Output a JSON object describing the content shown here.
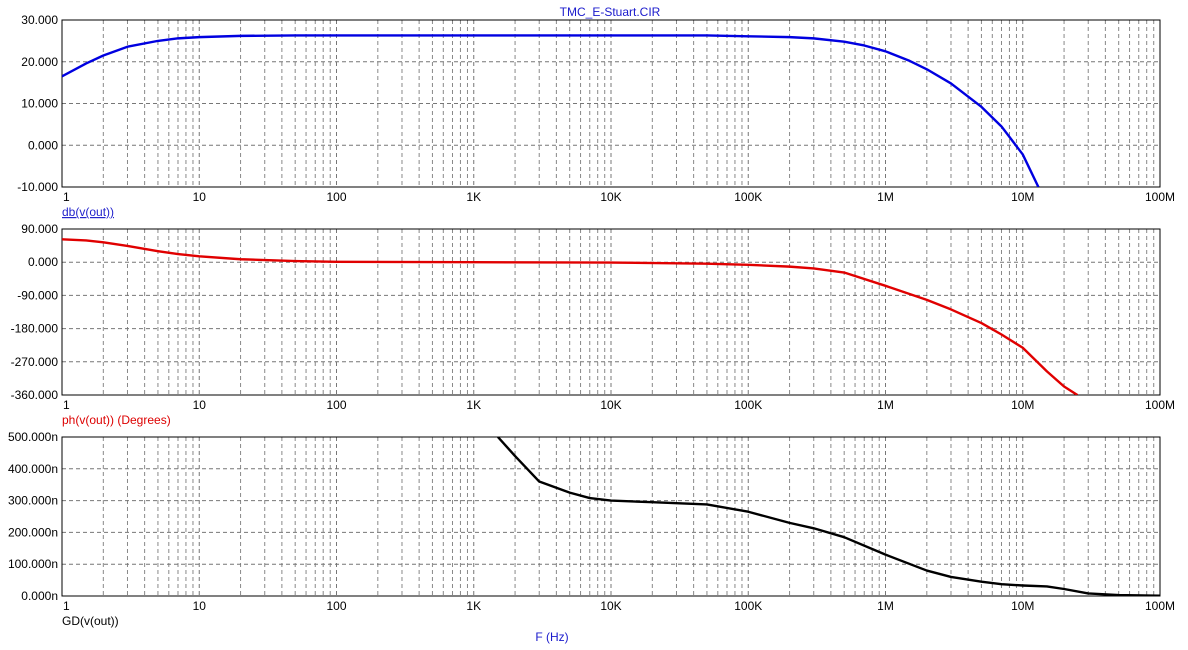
{
  "window": {
    "title": "TMC_E-Stuart.CIR"
  },
  "x_axis": {
    "label": "F (Hz)",
    "scale": "log",
    "range": [
      1,
      100000000
    ],
    "tick_values": [
      1,
      10,
      100,
      1000,
      10000,
      100000,
      1000000,
      10000000,
      100000000
    ],
    "tick_labels": [
      "1",
      "10",
      "100",
      "1K",
      "10K",
      "100K",
      "1M",
      "10M",
      "100M"
    ]
  },
  "chart_data": [
    {
      "type": "line",
      "title": "TMC_E-Stuart.CIR",
      "ylabel": "db(v(out))",
      "xlabel": "",
      "xscale": "log",
      "grid": true,
      "ylim": [
        -10,
        30
      ],
      "yticks": [
        30,
        20,
        10,
        0,
        -10
      ],
      "ytick_labels": [
        "30.000",
        "20.000",
        "10.000",
        "0.000",
        "-10.000"
      ],
      "series": [
        {
          "name": "db(v(out))",
          "color": "#0000e0",
          "x": [
            1,
            1.5,
            2,
            3,
            5,
            7,
            10,
            20,
            50,
            100,
            1000,
            10000,
            50000,
            100000,
            200000,
            300000,
            500000,
            700000,
            1000000,
            1500000,
            2000000,
            3000000,
            5000000,
            7000000,
            10000000,
            13000000
          ],
          "y": [
            16.5,
            19.6,
            21.5,
            23.6,
            25.0,
            25.6,
            25.9,
            26.2,
            26.3,
            26.3,
            26.3,
            26.3,
            26.3,
            26.1,
            25.9,
            25.6,
            24.8,
            23.9,
            22.5,
            20.2,
            18.2,
            14.8,
            9.2,
            4.5,
            -2.2,
            -10.0
          ]
        }
      ]
    },
    {
      "type": "line",
      "title": "",
      "ylabel": "ph(v(out)) (Degrees)",
      "xlabel": "",
      "xscale": "log",
      "grid": true,
      "ylim": [
        -360,
        90
      ],
      "yticks": [
        90,
        0,
        -90,
        -180,
        -270,
        -360
      ],
      "ytick_labels": [
        "90.000",
        "0.000",
        "-90.000",
        "-180.000",
        "-270.000",
        "-360.000"
      ],
      "series": [
        {
          "name": "ph(v(out))",
          "color": "#e00000",
          "x": [
            1,
            1.5,
            2,
            3,
            5,
            7,
            10,
            20,
            50,
            100,
            1000,
            10000,
            50000,
            100000,
            200000,
            300000,
            500000,
            1000000,
            2000000,
            3000000,
            5000000,
            7000000,
            10000000,
            15000000,
            20000000,
            25000000
          ],
          "y": [
            62,
            59,
            54,
            44,
            30,
            22,
            16,
            8,
            3,
            1,
            0,
            -1,
            -4,
            -7,
            -12,
            -17,
            -28,
            -64,
            -102,
            -128,
            -165,
            -196,
            -232,
            -296,
            -337,
            -360
          ]
        }
      ]
    },
    {
      "type": "line",
      "title": "",
      "ylabel": "GD(v(out))",
      "xlabel": "F (Hz)",
      "xscale": "log",
      "grid": true,
      "ylim": [
        0,
        5e-07
      ],
      "yticks": [
        5e-07,
        4e-07,
        3e-07,
        2e-07,
        1e-07,
        0
      ],
      "ytick_labels": [
        "500.000n",
        "400.000n",
        "300.000n",
        "200.000n",
        "100.000n",
        "0.000n"
      ],
      "series": [
        {
          "name": "GD(v(out))",
          "color": "#000000",
          "x": [
            1500,
            2000,
            3000,
            5000,
            7000,
            10000,
            20000,
            50000,
            100000,
            200000,
            300000,
            500000,
            1000000,
            2000000,
            3000000,
            5000000,
            7000000,
            10000000,
            15000000,
            20000000,
            30000000,
            50000000,
            100000000
          ],
          "y": [
            5e-07,
            4.4e-07,
            3.6e-07,
            3.25e-07,
            3.08e-07,
            3e-07,
            2.95e-07,
            2.88e-07,
            2.65e-07,
            2.3e-07,
            2.13e-07,
            1.85e-07,
            1.3e-07,
            8e-08,
            6e-08,
            4.5e-08,
            3.7e-08,
            3.3e-08,
            3e-08,
            2.2e-08,
            8e-09,
            3e-09,
            1e-09
          ]
        }
      ]
    }
  ]
}
